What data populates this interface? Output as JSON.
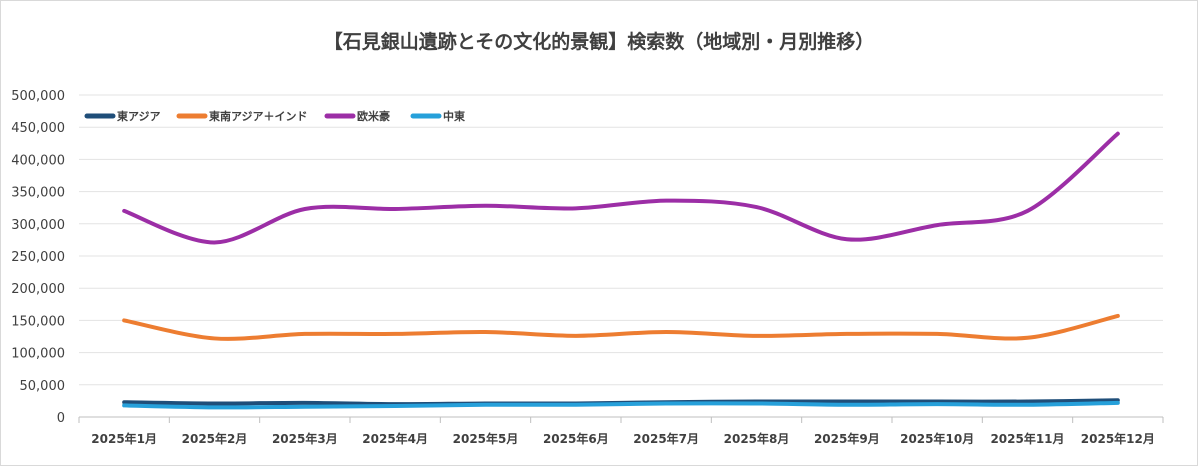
{
  "chart_data": {
    "type": "line",
    "title": "【石見銀山遺跡とその文化的景観】検索数（地域別・月別推移）",
    "xlabel": "",
    "ylabel": "",
    "ylim": [
      0,
      500000
    ],
    "yticks": [
      0,
      50000,
      100000,
      150000,
      200000,
      250000,
      300000,
      350000,
      400000,
      450000,
      500000
    ],
    "ytick_labels": [
      "0",
      "50,000",
      "100,000",
      "150,000",
      "200,000",
      "250,000",
      "300,000",
      "350,000",
      "400,000",
      "450,000",
      "500,000"
    ],
    "grid": true,
    "legend_position": "top-left",
    "categories": [
      "2025年1月",
      "2025年2月",
      "2025年3月",
      "2025年4月",
      "2025年5月",
      "2025年6月",
      "2025年7月",
      "2025年8月",
      "2025年9月",
      "2025年10月",
      "2025年11月",
      "2025年12月"
    ],
    "series": [
      {
        "name": "東アジア",
        "color": "#1f4e79",
        "values": [
          23000,
          21000,
          22000,
          20000,
          21000,
          21000,
          23000,
          24000,
          24000,
          24000,
          24000,
          26000
        ]
      },
      {
        "name": "東南アジア＋インド",
        "color": "#ed7d31",
        "values": [
          150000,
          122000,
          129000,
          129000,
          132000,
          126000,
          132000,
          126000,
          129000,
          129000,
          123000,
          157000
        ]
      },
      {
        "name": "欧米豪",
        "color": "#9c2ea6",
        "values": [
          320000,
          271000,
          323000,
          323000,
          328000,
          324000,
          336000,
          326000,
          276000,
          298000,
          320000,
          440000
        ]
      },
      {
        "name": "中東",
        "color": "#26a0da",
        "values": [
          18000,
          15000,
          16000,
          17000,
          19000,
          19000,
          21000,
          21000,
          19000,
          20000,
          19000,
          22000
        ]
      }
    ]
  }
}
